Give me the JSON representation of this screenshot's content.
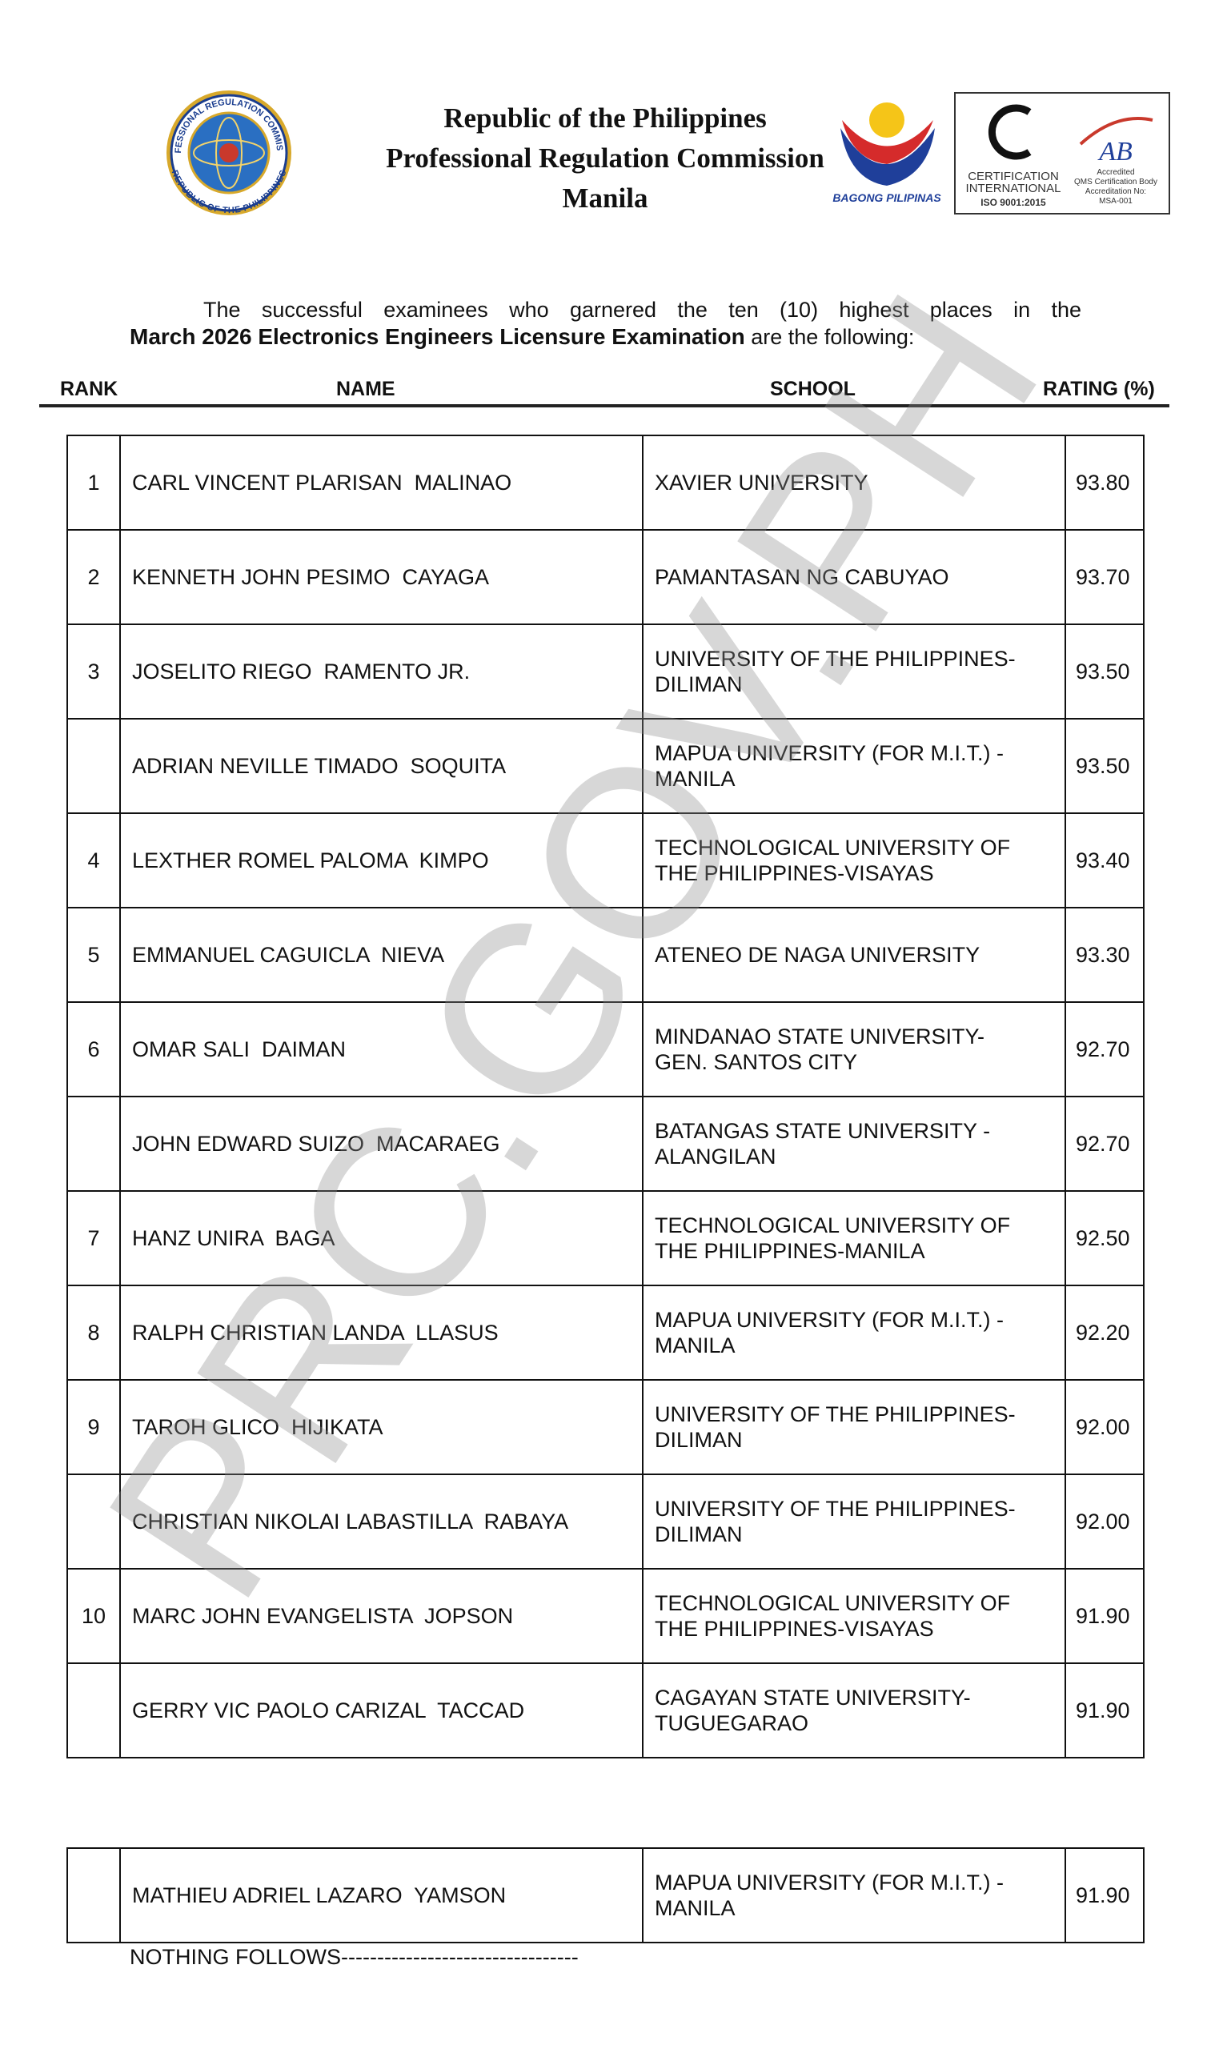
{
  "header": {
    "seal_top": "PROFESSIONAL REGULATION COMMISSION",
    "seal_bottom": "REPUBLIC OF THE PHILIPPINES",
    "line1": "Republic of the Philippines",
    "line2": "Professional Regulation Commission",
    "line3": "Manila",
    "bagong": "BAGONG PILIPINAS",
    "cert": [
      "CERTIFICATION",
      "INTERNATIONAL",
      "ISO 9001:2015"
    ],
    "pab": "AB",
    "pab_lines": [
      "Accredited",
      "QMS Certification Body",
      "Accreditation No:",
      "MSA-001"
    ]
  },
  "intro": {
    "line1": "The successful examinees who garnered the ten (10) highest places in the",
    "line2_bold": "March 2026 Electronics Engineers Licensure Examination",
    "line2_rest": "are the following:"
  },
  "columns": [
    "RANK",
    "NAME",
    "SCHOOL",
    "RATING (%)"
  ],
  "table": {
    "rows": [
      [
        1,
        "CARL VINCENT PLARISAN  MALINAO",
        [
          "XAVIER UNIVERSITY"
        ],
        "93.80"
      ],
      [
        2,
        "KENNETH JOHN PESIMO  CAYAGA",
        [
          "PAMANTASAN NG CABUYAO"
        ],
        "93.70"
      ],
      [
        3,
        "JOSELITO RIEGO  RAMENTO JR.",
        [
          "UNIVERSITY OF THE PHILIPPINES-",
          "DILIMAN"
        ],
        "93.50"
      ],
      [
        null,
        "ADRIAN NEVILLE TIMADO  SOQUITA",
        [
          "MAPUA UNIVERSITY (FOR M.I.T.) -",
          "MANILA"
        ],
        "93.50"
      ],
      [
        4,
        "LEXTHER ROMEL PALOMA  KIMPO",
        [
          "TECHNOLOGICAL UNIVERSITY OF",
          "THE PHILIPPINES-VISAYAS"
        ],
        "93.40"
      ],
      [
        5,
        "EMMANUEL CAGUICLA  NIEVA",
        [
          "ATENEO DE NAGA UNIVERSITY"
        ],
        "93.30"
      ],
      [
        6,
        "OMAR SALI  DAIMAN",
        [
          "MINDANAO STATE UNIVERSITY-",
          "GEN. SANTOS CITY"
        ],
        "92.70"
      ],
      [
        null,
        "JOHN EDWARD SUIZO  MACARAEG",
        [
          "BATANGAS STATE UNIVERSITY -",
          "ALANGILAN"
        ],
        "92.70"
      ],
      [
        7,
        "HANZ UNIRA  BAGA",
        [
          "TECHNOLOGICAL UNIVERSITY OF",
          "THE PHILIPPINES-MANILA"
        ],
        "92.50"
      ],
      [
        8,
        "RALPH CHRISTIAN LANDA  LLASUS",
        [
          "MAPUA UNIVERSITY (FOR M.I.T.) -",
          "MANILA"
        ],
        "92.20"
      ],
      [
        9,
        "TAROH GLICO  HIJIKATA",
        [
          "UNIVERSITY OF THE PHILIPPINES-",
          "DILIMAN"
        ],
        "92.00"
      ],
      [
        null,
        "CHRISTIAN NIKOLAI LABASTILLA  RABAYA",
        [
          "UNIVERSITY OF THE PHILIPPINES-",
          "DILIMAN"
        ],
        "92.00"
      ],
      [
        10,
        "MARC JOHN EVANGELISTA  JOPSON",
        [
          "TECHNOLOGICAL UNIVERSITY OF",
          "THE PHILIPPINES-VISAYAS"
        ],
        "91.90"
      ],
      [
        null,
        "GERRY VIC PAOLO CARIZAL  TACCAD",
        [
          "CAGAYAN STATE UNIVERSITY-",
          "TUGUEGARAO"
        ],
        "91.90"
      ]
    ]
  },
  "extra_table": {
    "rows": [
      [
        null,
        "MATHIEU ADRIEL LAZARO  YAMSON",
        [
          "MAPUA UNIVERSITY (FOR M.I.T.) -",
          "MANILA"
        ],
        "91.90"
      ]
    ]
  },
  "footer": "NOTHING FOLLOWS---------------------------------",
  "watermark": "PRC.GOV.PH"
}
